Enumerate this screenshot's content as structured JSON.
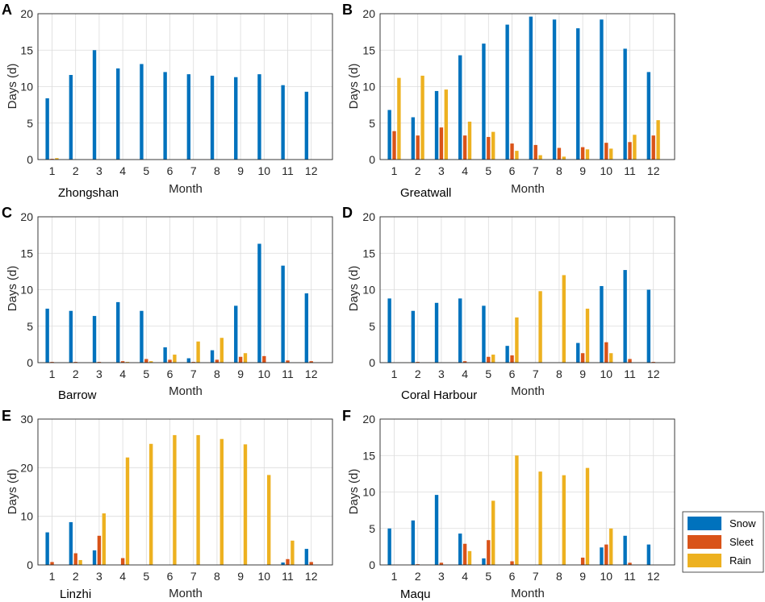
{
  "chart_data": [
    {
      "type": "bar",
      "panel_label": "A",
      "station": "Zhongshan",
      "xlabel": "Month",
      "ylabel": "Days (d)",
      "categories": [
        "1",
        "2",
        "3",
        "4",
        "5",
        "6",
        "7",
        "8",
        "9",
        "10",
        "11",
        "12"
      ],
      "ylim": [
        0,
        20
      ],
      "yticks": [
        "0",
        "5",
        "10",
        "15",
        "20"
      ],
      "grid": true,
      "series": [
        {
          "name": "Snow",
          "values": [
            8.4,
            11.6,
            15.0,
            12.5,
            13.1,
            12.0,
            11.7,
            11.5,
            11.3,
            11.7,
            10.2,
            9.3
          ]
        },
        {
          "name": "Sleet",
          "values": [
            0.1,
            0,
            0,
            0,
            0,
            0,
            0,
            0,
            0,
            0,
            0,
            0
          ]
        },
        {
          "name": "Rain",
          "values": [
            0.2,
            0,
            0,
            0,
            0,
            0,
            0,
            0,
            0,
            0,
            0,
            0
          ]
        }
      ]
    },
    {
      "type": "bar",
      "panel_label": "B",
      "station": "Greatwall",
      "xlabel": "Month",
      "ylabel": "Days (d)",
      "categories": [
        "1",
        "2",
        "3",
        "4",
        "5",
        "6",
        "7",
        "8",
        "9",
        "10",
        "11",
        "12"
      ],
      "ylim": [
        0,
        20
      ],
      "yticks": [
        "0",
        "5",
        "10",
        "15",
        "20"
      ],
      "grid": true,
      "series": [
        {
          "name": "Snow",
          "values": [
            6.8,
            5.8,
            9.4,
            14.3,
            15.9,
            18.5,
            19.6,
            19.2,
            18.0,
            19.2,
            15.2,
            12.0
          ]
        },
        {
          "name": "Sleet",
          "values": [
            3.9,
            3.3,
            4.4,
            3.3,
            3.1,
            2.2,
            2.0,
            1.6,
            1.7,
            2.3,
            2.4,
            3.3
          ]
        },
        {
          "name": "Rain",
          "values": [
            11.2,
            11.5,
            9.6,
            5.2,
            3.8,
            1.2,
            0.6,
            0.4,
            1.4,
            1.5,
            3.4,
            5.4
          ]
        }
      ]
    },
    {
      "type": "bar",
      "panel_label": "C",
      "station": "Barrow",
      "xlabel": "Month",
      "ylabel": "Days (d)",
      "categories": [
        "1",
        "2",
        "3",
        "4",
        "5",
        "6",
        "7",
        "8",
        "9",
        "10",
        "11",
        "12"
      ],
      "ylim": [
        0,
        20
      ],
      "yticks": [
        "0",
        "5",
        "10",
        "15",
        "20"
      ],
      "grid": true,
      "series": [
        {
          "name": "Snow",
          "values": [
            7.4,
            7.1,
            6.4,
            8.3,
            7.1,
            2.1,
            0.6,
            1.7,
            7.8,
            16.3,
            13.3,
            9.5
          ]
        },
        {
          "name": "Sleet",
          "values": [
            0.1,
            0.1,
            0.1,
            0.2,
            0.5,
            0.4,
            0.1,
            0.4,
            0.8,
            0.9,
            0.3,
            0.2
          ]
        },
        {
          "name": "Rain",
          "values": [
            0,
            0,
            0,
            0.1,
            0.2,
            1.1,
            2.9,
            3.4,
            1.3,
            0,
            0,
            0
          ]
        }
      ]
    },
    {
      "type": "bar",
      "panel_label": "D",
      "station": "Coral Harbour",
      "xlabel": "Month",
      "ylabel": "Days (d)",
      "categories": [
        "1",
        "2",
        "3",
        "4",
        "5",
        "6",
        "7",
        "8",
        "9",
        "10",
        "11",
        "12"
      ],
      "ylim": [
        0,
        20
      ],
      "yticks": [
        "0",
        "5",
        "10",
        "15",
        "20"
      ],
      "grid": true,
      "series": [
        {
          "name": "Snow",
          "values": [
            8.8,
            7.1,
            8.2,
            8.8,
            7.8,
            2.3,
            0,
            0,
            2.7,
            10.5,
            12.7,
            10.0
          ]
        },
        {
          "name": "Sleet",
          "values": [
            0,
            0.1,
            0,
            0.2,
            0.8,
            1.0,
            0,
            0,
            1.3,
            2.8,
            0.5,
            0.1
          ]
        },
        {
          "name": "Rain",
          "values": [
            0,
            0,
            0,
            0,
            1.1,
            6.2,
            9.8,
            12.0,
            7.4,
            1.3,
            0,
            0
          ]
        }
      ]
    },
    {
      "type": "bar",
      "panel_label": "E",
      "station": "Linzhi",
      "xlabel": "Month",
      "ylabel": "Days (d)",
      "categories": [
        "1",
        "2",
        "3",
        "4",
        "5",
        "6",
        "7",
        "8",
        "9",
        "10",
        "11",
        "12"
      ],
      "ylim": [
        0,
        30
      ],
      "yticks": [
        "0",
        "10",
        "20",
        "30"
      ],
      "grid": true,
      "series": [
        {
          "name": "Snow",
          "values": [
            6.7,
            8.8,
            3.0,
            0,
            0,
            0,
            0,
            0,
            0,
            0,
            0.5,
            3.3
          ]
        },
        {
          "name": "Sleet",
          "values": [
            0.6,
            2.4,
            6.0,
            1.4,
            0,
            0,
            0,
            0,
            0,
            0,
            1.2,
            0.6
          ]
        },
        {
          "name": "Rain",
          "values": [
            0,
            1.0,
            10.6,
            22.1,
            24.9,
            26.7,
            26.7,
            25.9,
            24.8,
            18.5,
            5.0,
            0
          ]
        }
      ]
    },
    {
      "type": "bar",
      "panel_label": "F",
      "station": "Maqu",
      "xlabel": "Month",
      "ylabel": "Days (d)",
      "categories": [
        "1",
        "2",
        "3",
        "4",
        "5",
        "6",
        "7",
        "8",
        "9",
        "10",
        "11",
        "12"
      ],
      "ylim": [
        0,
        20
      ],
      "yticks": [
        "0",
        "5",
        "10",
        "15",
        "20"
      ],
      "grid": true,
      "series": [
        {
          "name": "Snow",
          "values": [
            5.0,
            6.1,
            9.6,
            4.3,
            0.9,
            0,
            0,
            0,
            0,
            2.4,
            4.0,
            2.8
          ]
        },
        {
          "name": "Sleet",
          "values": [
            0,
            0.1,
            0.3,
            2.9,
            3.4,
            0.5,
            0,
            0,
            1.0,
            2.8,
            0.3,
            0
          ]
        },
        {
          "name": "Rain",
          "values": [
            0,
            0,
            0,
            1.9,
            8.8,
            15.0,
            12.8,
            12.3,
            13.3,
            5.0,
            0,
            0
          ]
        }
      ]
    }
  ],
  "legend": {
    "entries": [
      "Snow",
      "Sleet",
      "Rain"
    ],
    "colors": [
      "#0072BD",
      "#D95319",
      "#EDB120"
    ]
  }
}
